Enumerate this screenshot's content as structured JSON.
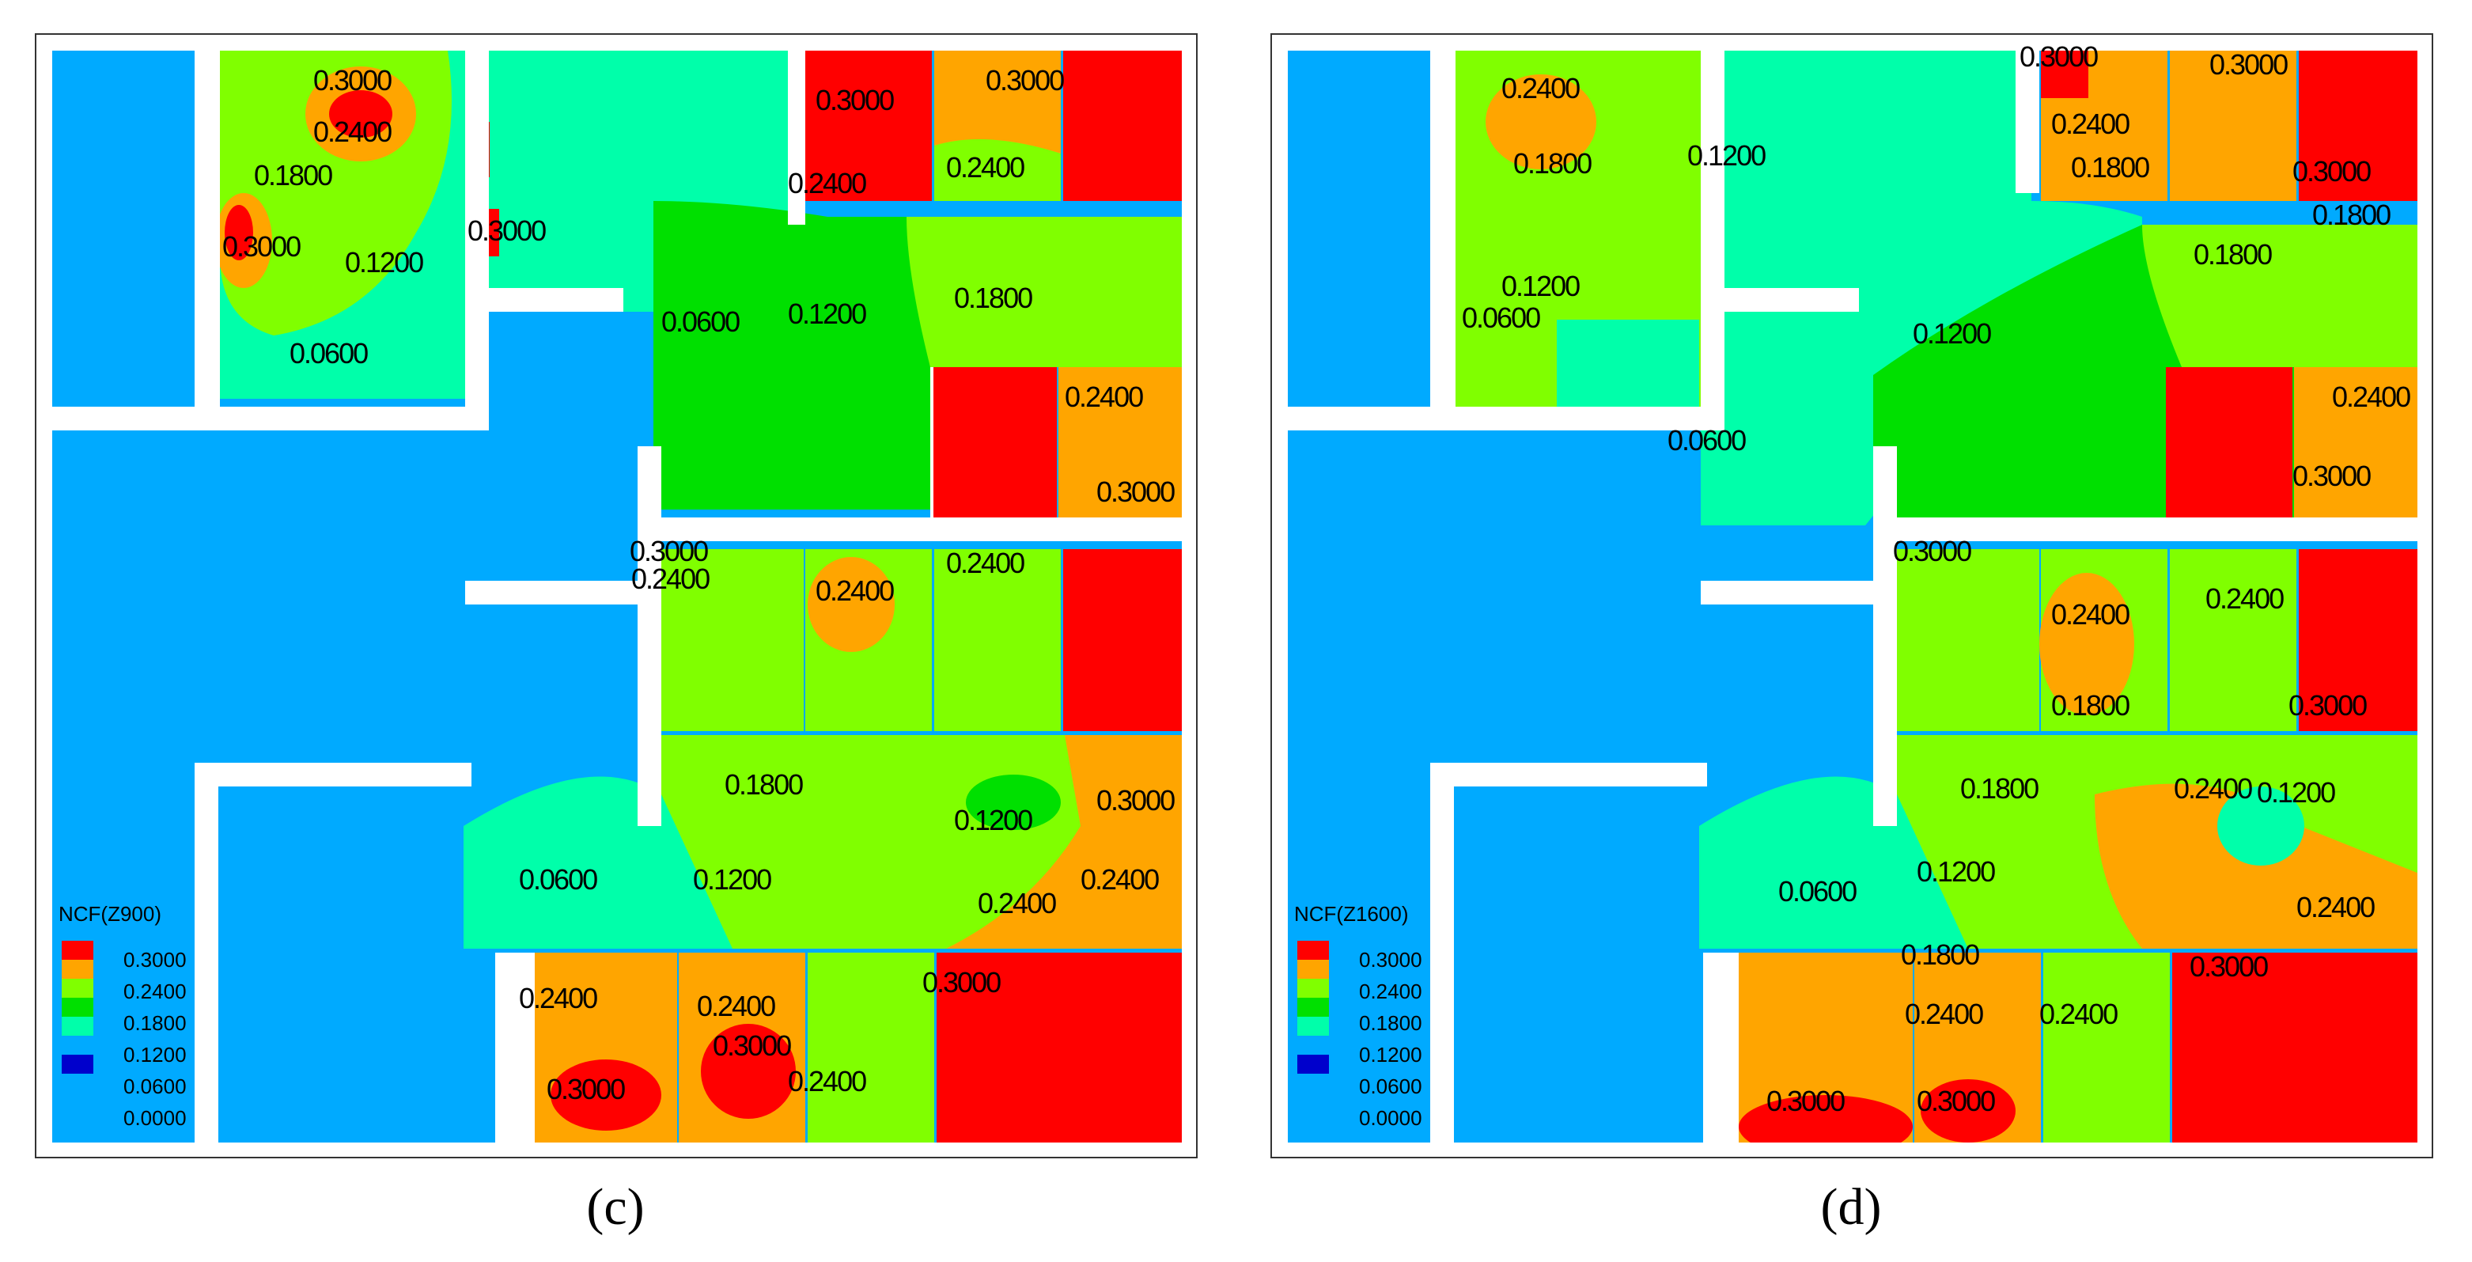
{
  "colors": {
    "level_0300": "#ff0000",
    "level_0240": "#ffa500",
    "level_0180": "#80ff00",
    "level_0120": "#00e000",
    "level_0060": "#00ffaa",
    "level_0000": "#00aaff",
    "level_min": "#0000cc",
    "wall": "#ffffff",
    "frame": "#333333"
  },
  "legend_levels": [
    "0.3000",
    "0.2400",
    "0.1800",
    "0.1200",
    "0.0600",
    "0.0000"
  ],
  "panels": [
    {
      "id": "c",
      "caption": "(c)",
      "legend_title": "NCF(Z900)",
      "labels": [
        "0.3000",
        "0.2400",
        "0.1800",
        "0.3000",
        "0.1200",
        "0.0600",
        "0.3000",
        "0.0600",
        "0.1200",
        "0.1800",
        "0.3000",
        "0.3000",
        "0.2400",
        "0.2400",
        "0.2400",
        "0.3000",
        "0.3000",
        "0.2400",
        "0.2400",
        "0.2400",
        "0.1800",
        "0.1200",
        "0.3000",
        "0.0600",
        "0.1200",
        "0.2400",
        "0.2400",
        "0.2400",
        "0.2400",
        "0.3000",
        "0.3000",
        "0.3000",
        "0.2400"
      ]
    },
    {
      "id": "d",
      "caption": "(d)",
      "legend_title": "NCF(Z1600)",
      "labels": [
        "0.2400",
        "0.1800",
        "0.1200",
        "0.0600",
        "0.1200",
        "0.0600",
        "0.1200",
        "0.3000",
        "0.3000",
        "0.2400",
        "0.1800",
        "0.3000",
        "0.1800",
        "0.1800",
        "0.2400",
        "0.3000",
        "0.3000",
        "0.2400",
        "0.2400",
        "0.1800",
        "0.3000",
        "0.1800",
        "0.2400",
        "0.1200",
        "0.1200",
        "0.0600",
        "0.2400",
        "0.1800",
        "0.3000",
        "0.2400",
        "0.2400",
        "0.3000",
        "0.3000"
      ]
    }
  ]
}
